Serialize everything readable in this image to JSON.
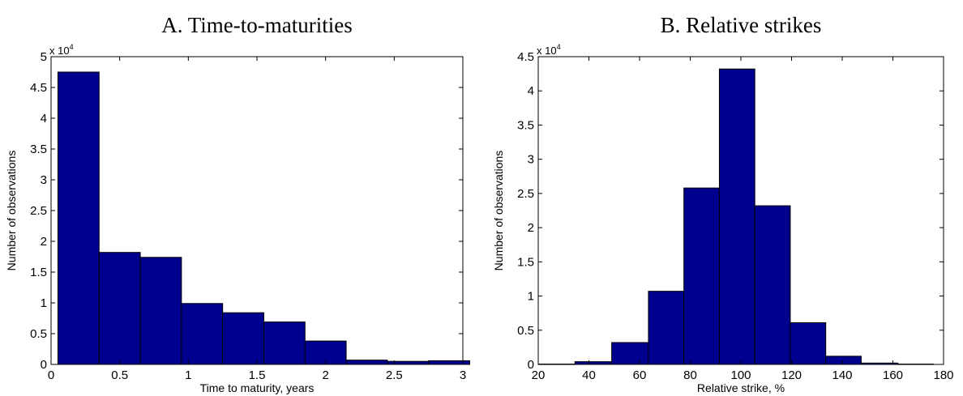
{
  "chart_data": [
    {
      "type": "bar",
      "title": "A. Time-to-maturities",
      "xlabel": "Time to maturity, years",
      "ylabel": "Number of observations",
      "y_multiplier_base": "x 10",
      "y_multiplier_exp": "4",
      "xlim": [
        0,
        3
      ],
      "ylim": [
        0,
        5
      ],
      "xticks": [
        0,
        0.5,
        1,
        1.5,
        2,
        2.5,
        3
      ],
      "xtick_labels": [
        "0",
        "0.5",
        "1",
        "1.5",
        "2",
        "2.5",
        "3"
      ],
      "yticks": [
        0,
        0.5,
        1,
        1.5,
        2,
        2.5,
        3,
        3.5,
        4,
        4.5,
        5
      ],
      "ytick_labels": [
        "0",
        "0.5",
        "1",
        "1.5",
        "2",
        "2.5",
        "3",
        "3.5",
        "4",
        "4.5",
        "5"
      ],
      "bin_edges": [
        0.05,
        0.35,
        0.65,
        0.95,
        1.25,
        1.55,
        1.85,
        2.15,
        2.45,
        2.75,
        3.05
      ],
      "values": [
        4.75,
        1.82,
        1.74,
        0.99,
        0.84,
        0.69,
        0.38,
        0.07,
        0.05,
        0.06
      ],
      "grid": false,
      "color": "#00008f"
    },
    {
      "type": "bar",
      "title": "B. Relative strikes",
      "xlabel": "Relative strike, %",
      "ylabel": "Number of observations",
      "y_multiplier_base": "x 10",
      "y_multiplier_exp": "4",
      "xlim": [
        20,
        180
      ],
      "ylim": [
        0,
        4.5
      ],
      "xticks": [
        20,
        40,
        60,
        80,
        100,
        120,
        140,
        160,
        180
      ],
      "xtick_labels": [
        "20",
        "40",
        "60",
        "80",
        "100",
        "120",
        "140",
        "160",
        "180"
      ],
      "yticks": [
        0,
        0.5,
        1,
        1.5,
        2,
        2.5,
        3,
        3.5,
        4,
        4.5
      ],
      "ytick_labels": [
        "0",
        "0.5",
        "1",
        "1.5",
        "2",
        "2.5",
        "3",
        "3.5",
        "4",
        "4.5"
      ],
      "bin_edges": [
        20,
        34.5,
        49,
        63.5,
        77.5,
        91.5,
        105.5,
        119.5,
        133.5,
        147.5,
        162,
        176
      ],
      "values": [
        0.005,
        0.04,
        0.32,
        1.07,
        2.58,
        4.32,
        2.32,
        0.61,
        0.12,
        0.02,
        0.005
      ],
      "grid": false,
      "color": "#00008f"
    }
  ]
}
